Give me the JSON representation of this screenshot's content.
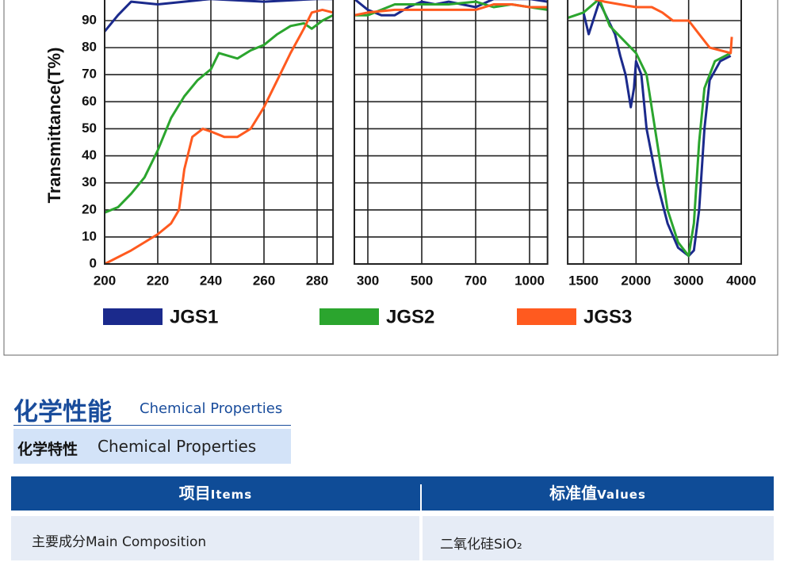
{
  "chart_data": [
    {
      "type": "line",
      "ylabel": "Transmittance(T%)",
      "ylim": [
        0,
        100
      ],
      "yticks": [
        0,
        10,
        20,
        30,
        40,
        50,
        60,
        70,
        80,
        90
      ],
      "grid": true,
      "xlim": [
        200,
        286
      ],
      "xticks": [
        200,
        220,
        240,
        260,
        280
      ],
      "series": [
        {
          "name": "JGS1",
          "color": "#1b2a8c",
          "x": [
            200,
            205,
            210,
            220,
            240,
            260,
            280,
            286
          ],
          "values": [
            86,
            92,
            97,
            96,
            98,
            97,
            98,
            98
          ]
        },
        {
          "name": "JGS2",
          "color": "#2ba52e",
          "x": [
            200,
            205,
            210,
            215,
            220,
            225,
            230,
            235,
            240,
            243,
            250,
            255,
            260,
            265,
            270,
            275,
            278,
            282,
            286
          ],
          "values": [
            19,
            21,
            26,
            32,
            42,
            54,
            62,
            68,
            72,
            78,
            76,
            79,
            81,
            85,
            88,
            89,
            87,
            90,
            92
          ]
        },
        {
          "name": "JGS3",
          "color": "#ff5a1f",
          "x": [
            200,
            210,
            220,
            225,
            228,
            230,
            233,
            237,
            240,
            245,
            250,
            255,
            260,
            265,
            270,
            275,
            278,
            282,
            286
          ],
          "values": [
            0,
            5,
            11,
            15,
            20,
            35,
            47,
            50,
            49,
            47,
            47,
            50,
            58,
            68,
            78,
            87,
            93,
            94,
            93
          ]
        }
      ]
    },
    {
      "type": "line",
      "ylim": [
        0,
        100
      ],
      "grid": true,
      "xlim": [
        250,
        1100
      ],
      "xticks": [
        300,
        500,
        700,
        1000
      ],
      "series": [
        {
          "color": "#1b2a8c",
          "x": [
            250,
            300,
            350,
            400,
            450,
            500,
            550,
            600,
            700,
            800,
            1000,
            1100
          ],
          "values": [
            98,
            94,
            92,
            92,
            95,
            97,
            96,
            97,
            95,
            98,
            98,
            97
          ]
        },
        {
          "color": "#2ba52e",
          "x": [
            250,
            300,
            400,
            500,
            600,
            700,
            800,
            900,
            1000,
            1100
          ],
          "values": [
            92,
            92,
            96,
            96,
            96,
            97,
            95,
            96,
            95,
            94
          ]
        },
        {
          "color": "#ff5a1f",
          "x": [
            250,
            300,
            400,
            500,
            700,
            800,
            900,
            1000,
            1100
          ],
          "values": [
            92,
            93,
            94,
            94,
            94,
            96,
            96,
            95,
            95
          ]
        }
      ]
    },
    {
      "type": "line",
      "ylim": [
        0,
        100
      ],
      "grid": true,
      "xlim": [
        1350,
        4000
      ],
      "xticks": [
        1500,
        2000,
        3000,
        4000
      ],
      "series": [
        {
          "color": "#1b2a8c",
          "x": [
            1500,
            1550,
            1650,
            1800,
            1850,
            1900,
            1950,
            1980,
            2000,
            2100,
            2200,
            2400,
            2600,
            2800,
            3000,
            3100,
            3200,
            3300,
            3400,
            3600,
            3800
          ],
          "values": [
            93,
            85,
            97,
            85,
            77,
            70,
            58,
            65,
            75,
            70,
            50,
            30,
            15,
            6,
            3,
            5,
            20,
            50,
            68,
            75,
            77
          ]
        },
        {
          "color": "#2ba52e",
          "x": [
            1350,
            1500,
            1650,
            1750,
            1900,
            2000,
            2200,
            2400,
            2600,
            2800,
            3000,
            3100,
            3200,
            3300,
            3500,
            3800
          ],
          "values": [
            91,
            93,
            98,
            88,
            82,
            78,
            70,
            45,
            20,
            8,
            3,
            15,
            45,
            65,
            75,
            78
          ]
        },
        {
          "color": "#ff5a1f",
          "x": [
            1350,
            1500,
            1700,
            2000,
            2300,
            2500,
            2700,
            3000,
            3200,
            3400,
            3600,
            3800,
            3820
          ],
          "values": [
            99,
            99,
            97,
            95,
            95,
            93,
            90,
            90,
            85,
            80,
            79,
            78,
            84
          ]
        }
      ]
    }
  ],
  "section": {
    "title": "化学性能",
    "subtitle": "Chemical Properties"
  },
  "subsection": {
    "title": "化学特性",
    "subtitle": "Chemical Properties"
  },
  "table": {
    "header": [
      {
        "zh": "项目",
        "en": "Items"
      },
      {
        "zh": "标准值",
        "en": "Values"
      }
    ],
    "rows": [
      [
        "主要成分Main Composition",
        "二氧化硅SiO₂"
      ]
    ]
  }
}
